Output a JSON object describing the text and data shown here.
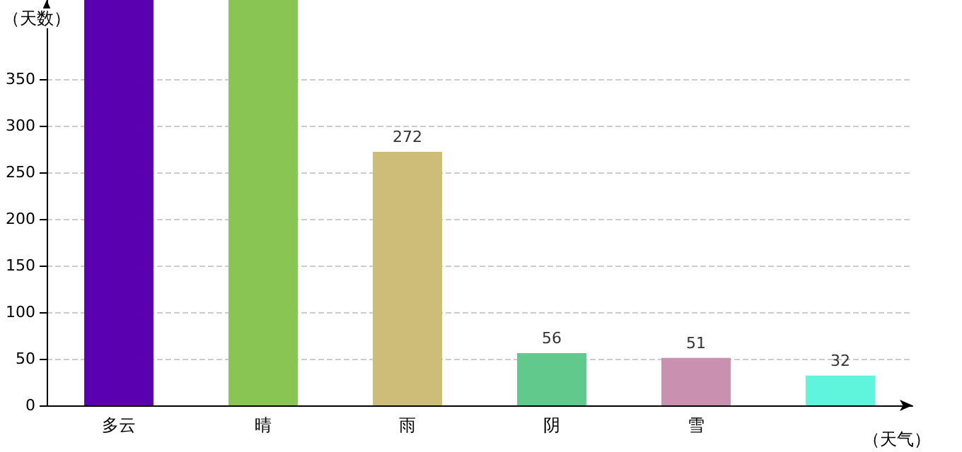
{
  "chart_data": {
    "type": "bar",
    "xlabel": "（天气）",
    "ylabel": "（天数）",
    "categories": [
      "多云",
      "晴",
      "雨",
      "阴",
      "雪",
      null
    ],
    "values": [
      435,
      435,
      272,
      56,
      51,
      32
    ],
    "colors": [
      "#5b00b0",
      "#88c552",
      "#cdbd78",
      "#62c98d",
      "#c990b0",
      "#5ef5dc"
    ],
    "value_labels": [
      null,
      null,
      "272",
      "56",
      "51",
      "32"
    ],
    "ylim": [
      0,
      435
    ],
    "yticks": [
      0,
      50,
      100,
      150,
      200,
      250,
      300,
      350
    ],
    "grid": "y"
  }
}
